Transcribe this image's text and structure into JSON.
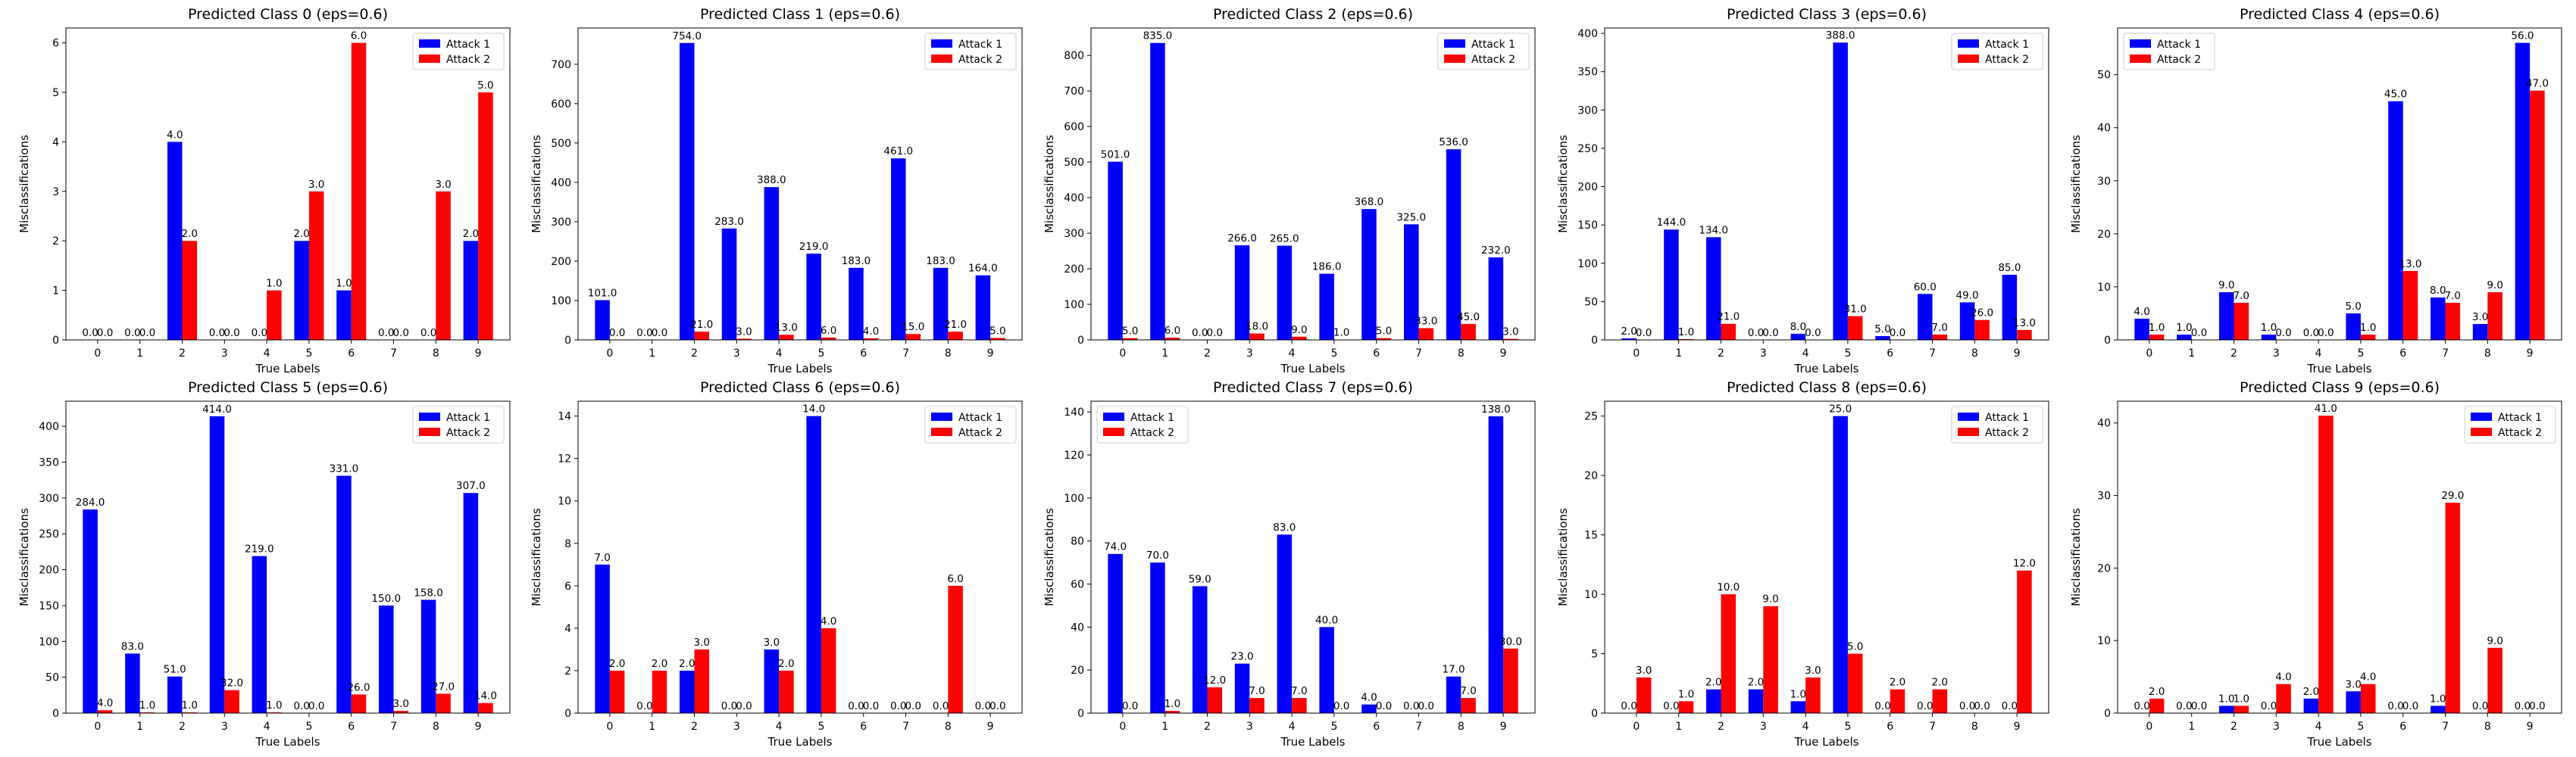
{
  "figure": {
    "colors": {
      "attack1": "#0000ff",
      "attack2": "#ff0000"
    }
  },
  "chart_data": [
    {
      "type": "bar",
      "title": "Predicted Class 0 (eps=0.6)",
      "xlabel": "True Labels",
      "ylabel": "Misclassifications",
      "categories": [
        "0",
        "1",
        "2",
        "3",
        "4",
        "5",
        "6",
        "7",
        "8",
        "9"
      ],
      "series": [
        {
          "name": "Attack 1",
          "values": [
            0,
            0,
            4,
            0,
            0,
            2,
            1,
            0,
            0,
            2
          ]
        },
        {
          "name": "Attack 2",
          "values": [
            0,
            0,
            2,
            0,
            1,
            3,
            6,
            0,
            3,
            5
          ]
        }
      ],
      "ylim": [
        0,
        6.3
      ],
      "yticks": [
        0,
        1,
        2,
        3,
        4,
        5,
        6
      ],
      "legend": "top-right"
    },
    {
      "type": "bar",
      "title": "Predicted Class 1 (eps=0.6)",
      "xlabel": "True Labels",
      "ylabel": "Misclassifications",
      "categories": [
        "0",
        "1",
        "2",
        "3",
        "4",
        "5",
        "6",
        "7",
        "8",
        "9"
      ],
      "series": [
        {
          "name": "Attack 1",
          "values": [
            101,
            0,
            754,
            283,
            388,
            219,
            183,
            461,
            183,
            164
          ]
        },
        {
          "name": "Attack 2",
          "values": [
            0,
            0,
            21,
            3,
            13,
            6,
            4,
            15,
            21,
            5
          ]
        }
      ],
      "ylim": [
        0,
        792
      ],
      "yticks": [
        0,
        100,
        200,
        300,
        400,
        500,
        600,
        700
      ],
      "legend": "top-right"
    },
    {
      "type": "bar",
      "title": "Predicted Class 2 (eps=0.6)",
      "xlabel": "True Labels",
      "ylabel": "Misclassifications",
      "categories": [
        "0",
        "1",
        "2",
        "3",
        "4",
        "5",
        "6",
        "7",
        "8",
        "9"
      ],
      "series": [
        {
          "name": "Attack 1",
          "values": [
            501,
            835,
            0,
            266,
            265,
            186,
            368,
            325,
            536,
            232
          ]
        },
        {
          "name": "Attack 2",
          "values": [
            5,
            6,
            0,
            18,
            9,
            1,
            5,
            33,
            45,
            3
          ]
        }
      ],
      "ylim": [
        0,
        877
      ],
      "yticks": [
        0,
        100,
        200,
        300,
        400,
        500,
        600,
        700,
        800
      ],
      "legend": "top-right"
    },
    {
      "type": "bar",
      "title": "Predicted Class 3 (eps=0.6)",
      "xlabel": "True Labels",
      "ylabel": "Misclassifications",
      "categories": [
        "0",
        "1",
        "2",
        "3",
        "4",
        "5",
        "6",
        "7",
        "8",
        "9"
      ],
      "series": [
        {
          "name": "Attack 1",
          "values": [
            2,
            144,
            134,
            0,
            8,
            388,
            5,
            60,
            49,
            85
          ]
        },
        {
          "name": "Attack 2",
          "values": [
            0,
            1,
            21,
            0,
            0,
            31,
            0,
            7,
            26,
            13
          ]
        }
      ],
      "ylim": [
        0,
        407
      ],
      "yticks": [
        0,
        50,
        100,
        150,
        200,
        250,
        300,
        350,
        400
      ],
      "legend": "top-right"
    },
    {
      "type": "bar",
      "title": "Predicted Class 4 (eps=0.6)",
      "xlabel": "True Labels",
      "ylabel": "Misclassifications",
      "categories": [
        "0",
        "1",
        "2",
        "3",
        "4",
        "5",
        "6",
        "7",
        "8",
        "9"
      ],
      "series": [
        {
          "name": "Attack 1",
          "values": [
            4,
            1,
            9,
            1,
            0,
            5,
            45,
            8,
            3,
            56
          ]
        },
        {
          "name": "Attack 2",
          "values": [
            1,
            0,
            7,
            0,
            0,
            1,
            13,
            7,
            9,
            47
          ]
        }
      ],
      "ylim": [
        0,
        58.8
      ],
      "yticks": [
        0,
        10,
        20,
        30,
        40,
        50
      ],
      "legend": "top-left"
    },
    {
      "type": "bar",
      "title": "Predicted Class 5 (eps=0.6)",
      "xlabel": "True Labels",
      "ylabel": "Misclassifications",
      "categories": [
        "0",
        "1",
        "2",
        "3",
        "4",
        "5",
        "6",
        "7",
        "8",
        "9"
      ],
      "series": [
        {
          "name": "Attack 1",
          "values": [
            284,
            83,
            51,
            414,
            219,
            0,
            331,
            150,
            158,
            307
          ]
        },
        {
          "name": "Attack 2",
          "values": [
            4,
            1,
            1,
            32,
            1,
            0,
            26,
            3,
            27,
            14
          ]
        }
      ],
      "ylim": [
        0,
        435
      ],
      "yticks": [
        0,
        50,
        100,
        150,
        200,
        250,
        300,
        350,
        400
      ],
      "legend": "top-right"
    },
    {
      "type": "bar",
      "title": "Predicted Class 6 (eps=0.6)",
      "xlabel": "True Labels",
      "ylabel": "Misclassifications",
      "categories": [
        "0",
        "1",
        "2",
        "3",
        "4",
        "5",
        "6",
        "7",
        "8",
        "9"
      ],
      "series": [
        {
          "name": "Attack 1",
          "values": [
            7,
            0,
            2,
            0,
            3,
            14,
            0,
            0,
            0,
            0
          ]
        },
        {
          "name": "Attack 2",
          "values": [
            2,
            2,
            3,
            0,
            2,
            4,
            0,
            0,
            6,
            0
          ]
        }
      ],
      "ylim": [
        0,
        14.7
      ],
      "yticks": [
        0,
        2,
        4,
        6,
        8,
        10,
        12,
        14
      ],
      "legend": "top-right"
    },
    {
      "type": "bar",
      "title": "Predicted Class 7 (eps=0.6)",
      "xlabel": "True Labels",
      "ylabel": "Misclassifications",
      "categories": [
        "0",
        "1",
        "2",
        "3",
        "4",
        "5",
        "6",
        "7",
        "8",
        "9"
      ],
      "series": [
        {
          "name": "Attack 1",
          "values": [
            74,
            70,
            59,
            23,
            83,
            40,
            4,
            0,
            17,
            138
          ]
        },
        {
          "name": "Attack 2",
          "values": [
            0,
            1,
            12,
            7,
            7,
            0,
            0,
            0,
            7,
            30
          ]
        }
      ],
      "ylim": [
        0,
        145
      ],
      "yticks": [
        0,
        20,
        40,
        60,
        80,
        100,
        120,
        140
      ],
      "legend": "top-left"
    },
    {
      "type": "bar",
      "title": "Predicted Class 8 (eps=0.6)",
      "xlabel": "True Labels",
      "ylabel": "Misclassifications",
      "categories": [
        "0",
        "1",
        "2",
        "3",
        "4",
        "5",
        "6",
        "7",
        "8",
        "9"
      ],
      "series": [
        {
          "name": "Attack 1",
          "values": [
            0,
            0,
            2,
            2,
            1,
            25,
            0,
            0,
            0,
            0
          ]
        },
        {
          "name": "Attack 2",
          "values": [
            3,
            1,
            10,
            9,
            3,
            5,
            2,
            2,
            0,
            12
          ]
        }
      ],
      "ylim": [
        0,
        26.25
      ],
      "yticks": [
        0,
        5,
        10,
        15,
        20,
        25
      ],
      "legend": "top-right"
    },
    {
      "type": "bar",
      "title": "Predicted Class 9 (eps=0.6)",
      "xlabel": "True Labels",
      "ylabel": "Misclassifications",
      "categories": [
        "0",
        "1",
        "2",
        "3",
        "4",
        "5",
        "6",
        "7",
        "8",
        "9"
      ],
      "series": [
        {
          "name": "Attack 1",
          "values": [
            0,
            0,
            1,
            0,
            2,
            3,
            0,
            1,
            0,
            0
          ]
        },
        {
          "name": "Attack 2",
          "values": [
            2,
            0,
            1,
            4,
            41,
            4,
            0,
            29,
            9,
            0
          ]
        }
      ],
      "ylim": [
        0,
        43
      ],
      "yticks": [
        0,
        10,
        20,
        30,
        40
      ],
      "legend": "top-right"
    }
  ]
}
